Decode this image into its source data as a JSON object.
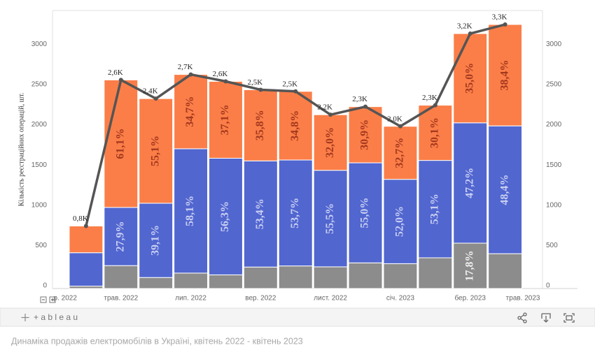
{
  "chart_data": {
    "type": "stacked-bar-line",
    "y_label": "Кількість реєстраційних операцій, шт.",
    "x": [
      0,
      1,
      2,
      3,
      4,
      5,
      6,
      7,
      8,
      9,
      10,
      11,
      12
    ],
    "xlim": [
      -0.96,
      13.07
    ],
    "xticks": [
      {
        "value": 0,
        "label": "р. 2022"
      },
      {
        "value": 1,
        "label": "трав. 2022"
      },
      {
        "value": 3,
        "label": "лип. 2022"
      },
      {
        "value": 5,
        "label": "вер. 2022"
      },
      {
        "value": 7,
        "label": "лист. 2022"
      },
      {
        "value": 9,
        "label": "січ. 2023"
      },
      {
        "value": 11,
        "label": "бер. 2023"
      },
      {
        "value": 13,
        "label": "трав. 2023"
      }
    ],
    "ylim": [
      0,
      3455
    ],
    "yticks": [
      0,
      500,
      1000,
      1500,
      2000,
      2500,
      3000
    ],
    "series": [
      {
        "color": "#8c8c8c",
        "label_color": "#eeeeee",
        "values": [
          30,
          285,
          137,
          192,
          170,
          267,
          281,
          270,
          319,
          309,
          382,
          564,
          433
        ],
        "share_labels": [
          null,
          null,
          null,
          null,
          null,
          null,
          null,
          null,
          null,
          null,
          null,
          "17,8%",
          null
        ]
      },
      {
        "color": "#5166cf",
        "label_color": "#c9cff2",
        "values": [
          415,
          723,
          923,
          1545,
          1449,
          1319,
          1316,
          1199,
          1243,
          1048,
          1210,
          1495,
          1588
        ],
        "share_labels": [
          null,
          "27,9%",
          "39,1%",
          "58,1%",
          "56,3%",
          "53,4%",
          "53,7%",
          "55,5%",
          "55,0%",
          "52,0%",
          "53,1%",
          "47,2%",
          "48,4%"
        ]
      },
      {
        "color": "#fb7e48",
        "label_color": "#a3381e",
        "values": [
          332,
          1584,
          1300,
          923,
          955,
          884,
          853,
          691,
          698,
          659,
          686,
          1109,
          1260
        ],
        "share_labels": [
          null,
          "61,1%",
          "55,1%",
          "34,7%",
          "37,1%",
          "35,8%",
          "34,8%",
          "32,0%",
          "30,9%",
          "32,7%",
          "30,1%",
          "35,0%",
          "38,4%"
        ]
      }
    ],
    "line": {
      "color": "#555555",
      "values": [
        777,
        2592,
        2360,
        2660,
        2574,
        2470,
        2450,
        2160,
        2260,
        2016,
        2278,
        3168,
        3281
      ],
      "value_labels": [
        "0,8K",
        "2,6K",
        "2,4K",
        "2,7K",
        "2,6K",
        "2,5K",
        "2,5K",
        "2,2K",
        "2,3K",
        "2,0K",
        "2,3K",
        "3,2K",
        "3,3K"
      ]
    }
  },
  "toolbar": {
    "logo": "+ a b l e a u"
  },
  "caption": "Динаміка продажів електромобілів в Україні, квітень 2022 - квітень 2023"
}
